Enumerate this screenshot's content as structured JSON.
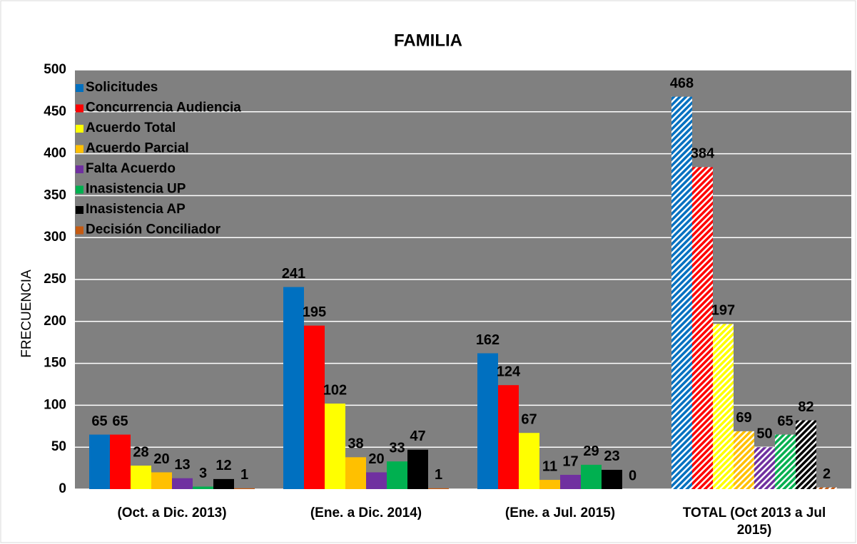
{
  "chart_data": {
    "type": "bar",
    "title": "FAMILIA",
    "y_label": "FRECUENCIA",
    "categories": [
      "(Oct. a Dic. 2013)",
      "(Ene. a Dic. 2014)",
      "(Ene. a Jul. 2015)",
      "TOTAL (Oct 2013 a Jul 2015)"
    ],
    "category_patterns": [
      "solid",
      "solid",
      "solid",
      "hatch"
    ],
    "series": [
      {
        "name": "Solicitudes",
        "color": "#0070c0",
        "values": [
          65,
          241,
          162,
          468
        ]
      },
      {
        "name": "Concurrencia Audiencia",
        "color": "#ff0000",
        "values": [
          65,
          195,
          124,
          384
        ]
      },
      {
        "name": "Acuerdo Total",
        "color": "#ffff00",
        "values": [
          28,
          102,
          67,
          197
        ]
      },
      {
        "name": "Acuerdo Parcial",
        "color": "#ffc000",
        "values": [
          20,
          38,
          11,
          69
        ]
      },
      {
        "name": "Falta Acuerdo",
        "color": "#7030a0",
        "values": [
          13,
          20,
          17,
          50
        ]
      },
      {
        "name": "Inasistencia UP",
        "color": "#00b050",
        "values": [
          3,
          33,
          29,
          65
        ]
      },
      {
        "name": "Inasistencia AP",
        "color": "#000000",
        "values": [
          12,
          47,
          23,
          82
        ]
      },
      {
        "name": "Decisión Conciliador",
        "color": "#c55a11",
        "values": [
          1,
          1,
          0,
          2
        ]
      }
    ],
    "ylim": [
      0,
      500
    ],
    "yticks": [
      0,
      50,
      100,
      150,
      200,
      250,
      300,
      350,
      400,
      450,
      500
    ],
    "grid": true,
    "legend": "upper left",
    "plot_background": "#808080"
  }
}
